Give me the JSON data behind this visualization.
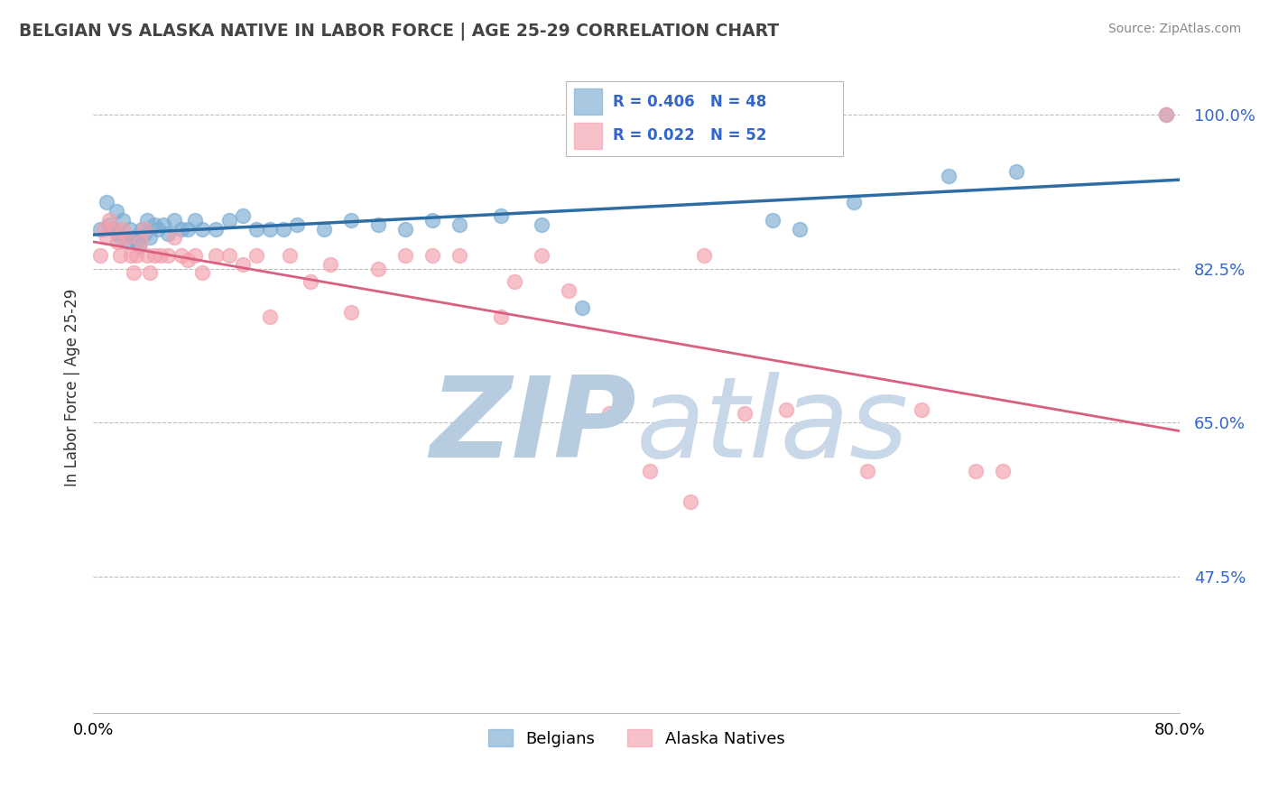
{
  "title": "BELGIAN VS ALASKA NATIVE IN LABOR FORCE | AGE 25-29 CORRELATION CHART",
  "source": "Source: ZipAtlas.com",
  "ylabel": "In Labor Force | Age 25-29",
  "ytick_labels": [
    "47.5%",
    "65.0%",
    "82.5%",
    "100.0%"
  ],
  "ytick_values": [
    0.475,
    0.65,
    0.825,
    1.0
  ],
  "xlim": [
    0.0,
    0.8
  ],
  "ylim": [
    0.32,
    1.06
  ],
  "belgian_R": 0.406,
  "belgian_N": 48,
  "alaskan_R": 0.022,
  "alaskan_N": 52,
  "belgian_color": "#7BADD4",
  "alaskan_color": "#F4A0AC",
  "belgian_line_color": "#2E6DA4",
  "alaskan_line_color": "#D96080",
  "legend_text_color": "#3366CC",
  "watermark_color": "#D8E8F4",
  "belgian_x": [
    0.005,
    0.01,
    0.012,
    0.015,
    0.017,
    0.018,
    0.02,
    0.022,
    0.025,
    0.027,
    0.03,
    0.032,
    0.034,
    0.036,
    0.038,
    0.04,
    0.042,
    0.045,
    0.048,
    0.052,
    0.055,
    0.06,
    0.065,
    0.07,
    0.075,
    0.08,
    0.09,
    0.1,
    0.11,
    0.12,
    0.13,
    0.14,
    0.15,
    0.17,
    0.19,
    0.21,
    0.23,
    0.25,
    0.27,
    0.3,
    0.33,
    0.36,
    0.5,
    0.52,
    0.56,
    0.63,
    0.68,
    0.79
  ],
  "belgian_y": [
    0.87,
    0.9,
    0.875,
    0.87,
    0.89,
    0.865,
    0.86,
    0.88,
    0.855,
    0.87,
    0.86,
    0.855,
    0.85,
    0.87,
    0.865,
    0.88,
    0.86,
    0.875,
    0.87,
    0.875,
    0.865,
    0.88,
    0.87,
    0.87,
    0.88,
    0.87,
    0.87,
    0.88,
    0.885,
    0.87,
    0.87,
    0.87,
    0.875,
    0.87,
    0.88,
    0.875,
    0.87,
    0.88,
    0.875,
    0.885,
    0.875,
    0.78,
    0.88,
    0.87,
    0.9,
    0.93,
    0.935,
    1.0
  ],
  "alaskan_x": [
    0.005,
    0.008,
    0.01,
    0.012,
    0.015,
    0.018,
    0.02,
    0.022,
    0.025,
    0.028,
    0.03,
    0.032,
    0.035,
    0.038,
    0.04,
    0.042,
    0.045,
    0.05,
    0.055,
    0.06,
    0.065,
    0.07,
    0.075,
    0.08,
    0.09,
    0.1,
    0.11,
    0.12,
    0.13,
    0.145,
    0.16,
    0.175,
    0.19,
    0.21,
    0.23,
    0.25,
    0.27,
    0.3,
    0.31,
    0.33,
    0.35,
    0.38,
    0.41,
    0.44,
    0.45,
    0.48,
    0.51,
    0.57,
    0.61,
    0.65,
    0.67,
    0.79
  ],
  "alaskan_y": [
    0.84,
    0.87,
    0.86,
    0.88,
    0.87,
    0.855,
    0.84,
    0.87,
    0.86,
    0.84,
    0.82,
    0.84,
    0.855,
    0.87,
    0.84,
    0.82,
    0.84,
    0.84,
    0.84,
    0.86,
    0.84,
    0.835,
    0.84,
    0.82,
    0.84,
    0.84,
    0.83,
    0.84,
    0.77,
    0.84,
    0.81,
    0.83,
    0.775,
    0.825,
    0.84,
    0.84,
    0.84,
    0.77,
    0.81,
    0.84,
    0.8,
    0.66,
    0.595,
    0.56,
    0.84,
    0.66,
    0.665,
    0.595,
    0.665,
    0.595,
    0.595,
    1.0
  ]
}
